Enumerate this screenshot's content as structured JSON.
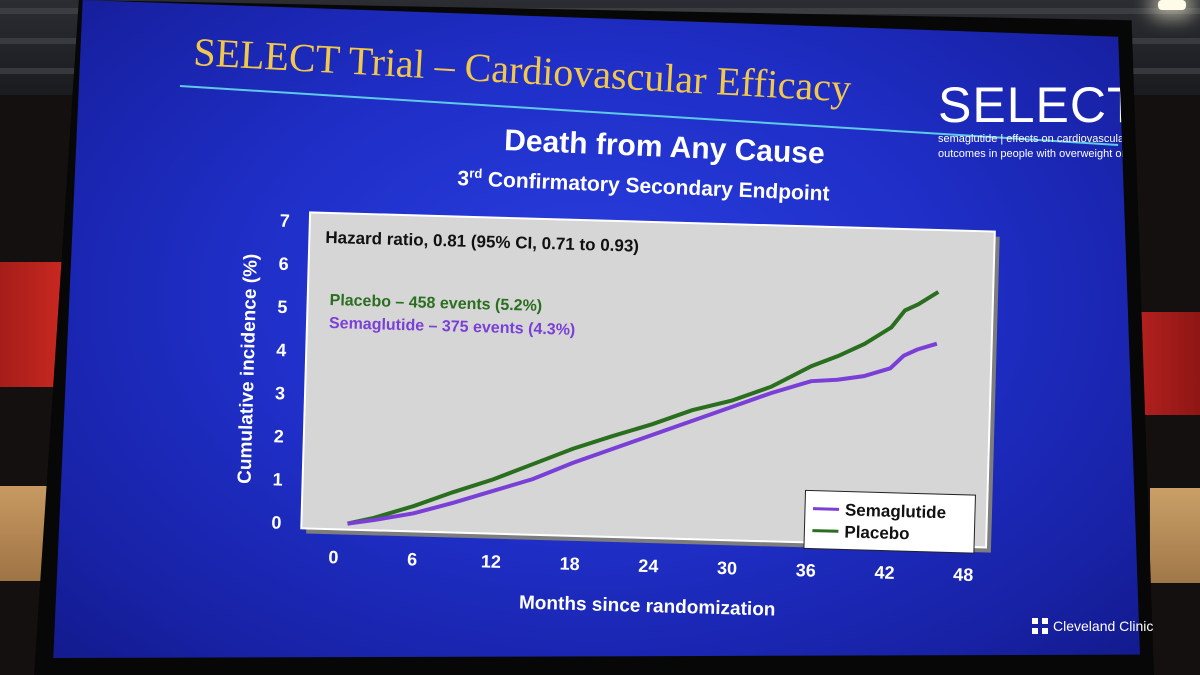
{
  "slide": {
    "title": "SELECT Trial – Cardiovascular Efficacy",
    "brand": {
      "name": "SELECT",
      "tagline_line1": "semaglutide  |  effects on cardiovascular",
      "tagline_line2": "outcomes in people with overweight or obesity"
    },
    "heading": "Death from Any Cause",
    "subheading_ordinal": "3",
    "subheading_sup": "rd",
    "subheading_rest": " Confirmatory Secondary Endpoint",
    "footer_logo_text": "Cleveland Clinic"
  },
  "colors": {
    "placebo": "#2a6e1f",
    "semaglutide": "#7a3fd6",
    "title_gold": "#f2c84b",
    "plot_bg": "#d6d6d6"
  },
  "chart_data": {
    "type": "line",
    "title": "Death from Any Cause",
    "xlabel": "Months since randomization",
    "ylabel": "Cumulative incidence (%)",
    "xlim": [
      0,
      48
    ],
    "ylim": [
      0,
      7
    ],
    "xticks": [
      0,
      6,
      12,
      18,
      24,
      30,
      36,
      42,
      48
    ],
    "yticks": [
      0,
      1,
      2,
      3,
      4,
      5,
      6,
      7
    ],
    "grid": false,
    "annotations": {
      "hazard_ratio": "Hazard ratio, 0.81 (95% CI, 0.71 to 0.93)",
      "placebo_events": "Placebo – 458 events (5.2%)",
      "semaglutide_events": "Semaglutide – 375 events (4.3%)"
    },
    "legend": {
      "position": "bottom-right",
      "entries": [
        "Semaglutide",
        "Placebo"
      ]
    },
    "series": [
      {
        "name": "Placebo",
        "x": [
          1,
          3,
          6,
          9,
          12,
          15,
          18,
          21,
          24,
          27,
          30,
          33,
          36,
          38,
          40,
          42,
          43,
          44,
          45.5
        ],
        "y": [
          0,
          0.15,
          0.45,
          0.8,
          1.12,
          1.5,
          1.88,
          2.2,
          2.5,
          2.85,
          3.1,
          3.45,
          3.95,
          4.2,
          4.5,
          4.9,
          5.3,
          5.45,
          5.75
        ]
      },
      {
        "name": "Semaglutide",
        "x": [
          1,
          3,
          6,
          9,
          12,
          15,
          18,
          21,
          24,
          27,
          30,
          33,
          36,
          38,
          40,
          42,
          43,
          44,
          45.5
        ],
        "y": [
          0,
          0.1,
          0.28,
          0.55,
          0.85,
          1.15,
          1.55,
          1.9,
          2.25,
          2.6,
          2.95,
          3.3,
          3.6,
          3.65,
          3.75,
          3.95,
          4.25,
          4.4,
          4.55
        ]
      }
    ]
  }
}
